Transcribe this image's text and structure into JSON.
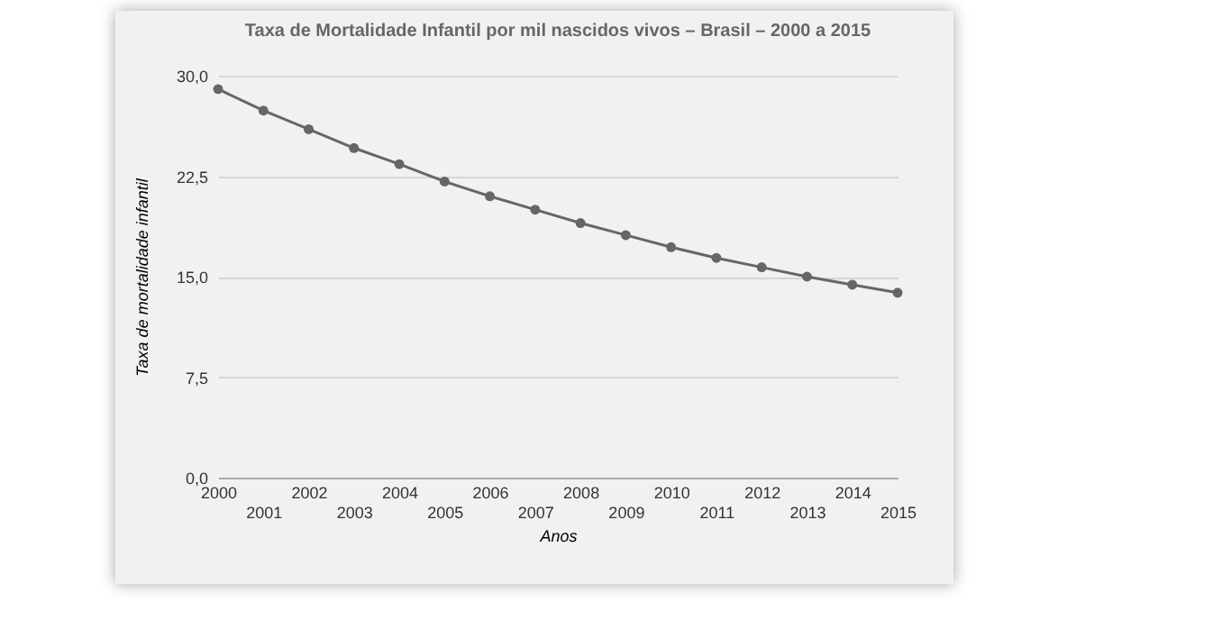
{
  "chart_data": {
    "type": "line",
    "title": "Taxa de Mortalidade Infantil por mil nascidos vivos – Brasil – 2000 a 2015",
    "xlabel": "Anos",
    "ylabel": "Taxa de mortalidade infantil",
    "categories": [
      "2000",
      "2001",
      "2002",
      "2003",
      "2004",
      "2005",
      "2006",
      "2007",
      "2008",
      "2009",
      "2010",
      "2011",
      "2012",
      "2013",
      "2014",
      "2015"
    ],
    "series": [
      {
        "color": "#666666",
        "values": [
          29.0,
          27.4,
          26.0,
          24.6,
          23.4,
          22.1,
          21.0,
          20.0,
          19.0,
          18.1,
          17.2,
          16.4,
          15.7,
          15.0,
          14.4,
          13.8
        ]
      }
    ],
    "ylim": [
      0,
      30
    ],
    "yticks": [
      {
        "value": 0,
        "label": "0,0"
      },
      {
        "value": 7.5,
        "label": "7,5"
      },
      {
        "value": 15,
        "label": "15,0"
      },
      {
        "value": 22.5,
        "label": "22,5"
      },
      {
        "value": 30,
        "label": "30,0"
      }
    ],
    "grid": "y",
    "marker": "circle",
    "line_style": "solid"
  }
}
